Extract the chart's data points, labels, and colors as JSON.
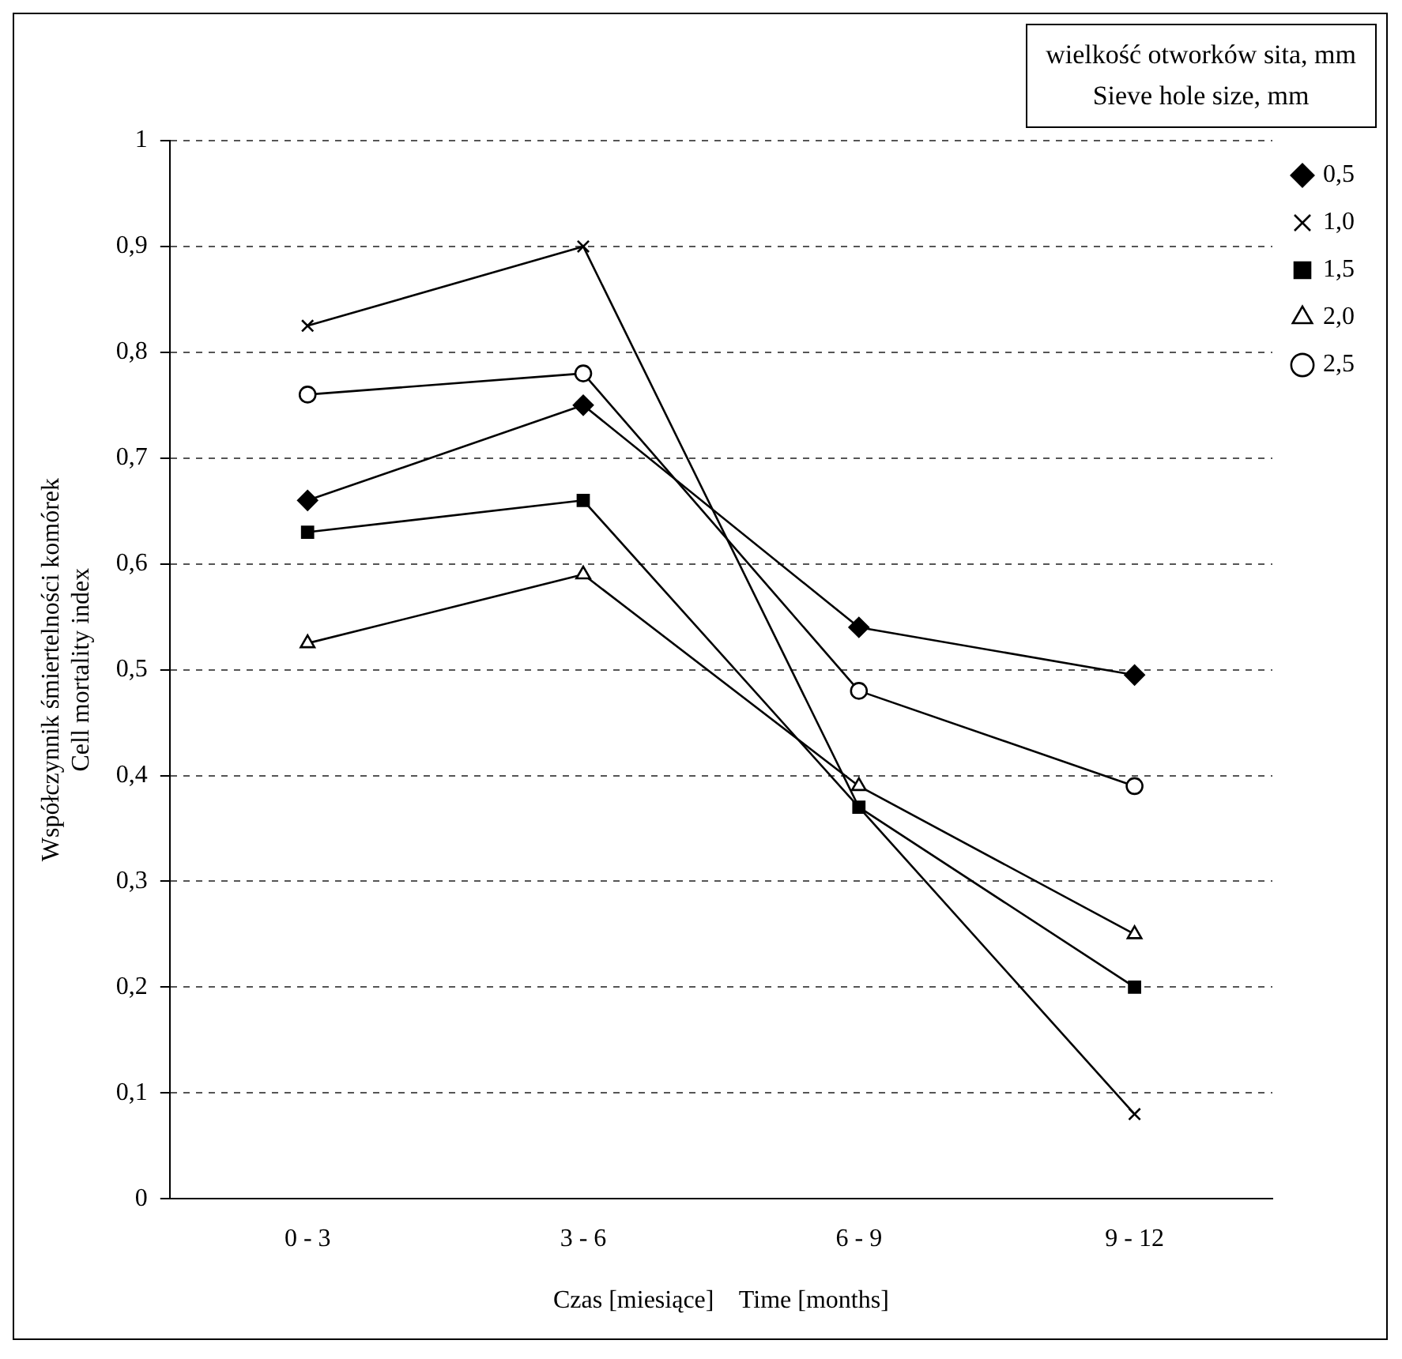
{
  "chart_data": {
    "type": "line",
    "xlabel": "Czas [miesiące]    Time [months]",
    "ylabel": "Współczynnik śmiertelności komórek\nCell mortality index",
    "legend_title": "wielkość otworków sita, mm\nSieve hole size, mm",
    "categories": [
      "0 - 3",
      "3 - 6",
      "6 - 9",
      "9 - 12"
    ],
    "series": [
      {
        "name": "0,5",
        "color": "#000000",
        "marker": "diamond",
        "values": [
          0.66,
          0.75,
          0.54,
          0.495
        ]
      },
      {
        "name": "1,0",
        "color": "#000000",
        "marker": "cross",
        "values": [
          0.825,
          0.9,
          0.37,
          0.08
        ]
      },
      {
        "name": "1,5",
        "color": "#000000",
        "marker": "square",
        "values": [
          0.63,
          0.66,
          0.37,
          0.2
        ]
      },
      {
        "name": "2,0",
        "color": "#000000",
        "marker": "triangle",
        "values": [
          0.525,
          0.59,
          0.39,
          0.25
        ]
      },
      {
        "name": "2,5",
        "color": "#000000",
        "marker": "circle",
        "values": [
          0.76,
          0.78,
          0.48,
          0.39
        ]
      }
    ],
    "ylim": [
      0,
      1
    ],
    "yticks": [
      0,
      {
        "value": 0.1,
        "label": "0,1"
      },
      {
        "value": 0.2,
        "label": "0,2"
      },
      {
        "value": 0.3,
        "label": "0,3"
      },
      {
        "value": 0.4,
        "label": "0,4"
      },
      {
        "value": 0.5,
        "label": "0,5"
      },
      {
        "value": 0.6,
        "label": "0,6"
      },
      {
        "value": 0.7,
        "label": "0,7"
      },
      {
        "value": 0.8,
        "label": "0,8"
      },
      {
        "value": 0.9,
        "label": "0,9"
      },
      1
    ],
    "grid": "y",
    "legend": "right",
    "line_style": "solid"
  }
}
